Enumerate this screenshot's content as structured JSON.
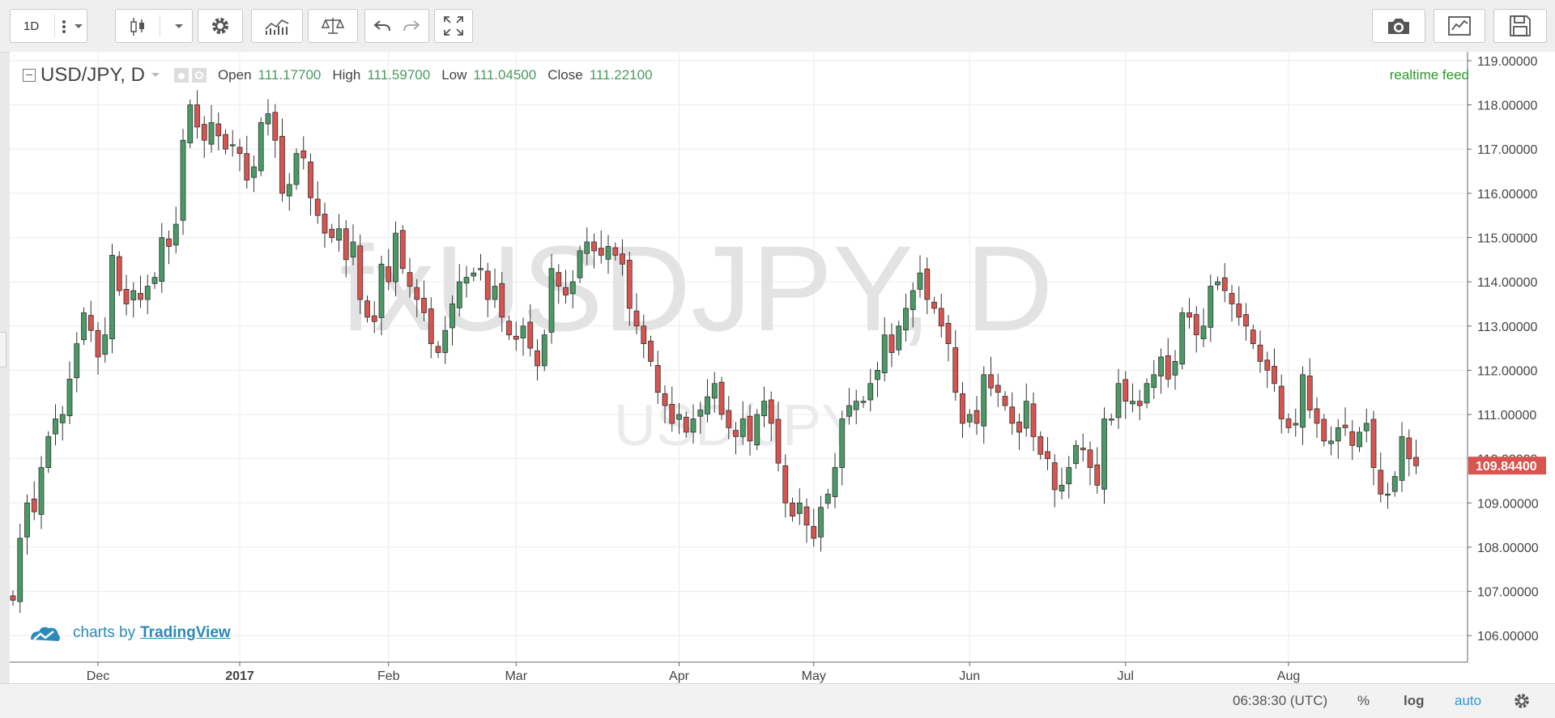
{
  "toolbar": {
    "interval": "1D"
  },
  "legend": {
    "symbol": "USD/JPY, D",
    "open_label": "Open",
    "open": "111.17700",
    "high_label": "High",
    "high": "111.59700",
    "low_label": "Low",
    "low": "111.04500",
    "close_label": "Close",
    "close": "111.22100"
  },
  "watermark": {
    "line1": "fxUSDJPY, D",
    "line2": "USD/JPY"
  },
  "feed_label": "realtime feed",
  "branding": {
    "prefix": "charts by",
    "name": "TradingView"
  },
  "bottom_bar": {
    "time": "06:38:30 (UTC)",
    "percent": "%",
    "log": "log",
    "auto": "auto"
  },
  "colors": {
    "up": "#4a9a66",
    "down": "#d9534f",
    "price_tag": "#d9534f",
    "accent": "#2a8ab8"
  },
  "chart_data": {
    "type": "candlestick",
    "ylim": [
      105.4,
      119.2
    ],
    "y_ticks": [
      106,
      107,
      108,
      109,
      110,
      111,
      112,
      113,
      114,
      115,
      116,
      117,
      118,
      119
    ],
    "y_tick_labels": [
      "106.00000",
      "107.00000",
      "108.00000",
      "109.00000",
      "110.00000",
      "111.00000",
      "112.00000",
      "113.00000",
      "114.00000",
      "115.00000",
      "116.00000",
      "117.00000",
      "118.00000",
      "119.00000"
    ],
    "x_labels": [
      {
        "label": "Dec",
        "index": 12
      },
      {
        "label": "2017",
        "index": 32
      },
      {
        "label": "Feb",
        "index": 53
      },
      {
        "label": "Mar",
        "index": 71
      },
      {
        "label": "Apr",
        "index": 94
      },
      {
        "label": "May",
        "index": 113
      },
      {
        "label": "Jun",
        "index": 135
      },
      {
        "label": "Jul",
        "index": 157
      },
      {
        "label": "Aug",
        "index": 180
      }
    ],
    "last_price": "109.84400",
    "last_price_value": 109.844,
    "closes": [
      106.8,
      108.2,
      109.0,
      108.8,
      109.8,
      110.5,
      110.9,
      111.0,
      111.8,
      112.6,
      113.3,
      112.9,
      112.3,
      112.8,
      114.6,
      113.8,
      113.5,
      113.8,
      113.6,
      113.9,
      114.1,
      115.0,
      114.8,
      115.3,
      117.2,
      118.0,
      117.5,
      117.2,
      117.6,
      117.3,
      117.0,
      117.1,
      116.9,
      116.3,
      116.6,
      117.6,
      117.8,
      117.2,
      116.0,
      116.2,
      116.9,
      116.8,
      115.9,
      115.5,
      115.1,
      115.0,
      115.2,
      114.5,
      114.9,
      113.6,
      113.2,
      113.1,
      114.4,
      114.0,
      115.1,
      114.3,
      113.9,
      113.6,
      113.3,
      112.6,
      112.4,
      112.9,
      113.5,
      114.0,
      114.1,
      114.2,
      114.3,
      113.6,
      113.9,
      113.2,
      112.8,
      112.7,
      113.0,
      112.5,
      112.1,
      112.8,
      114.3,
      113.9,
      113.7,
      114.0,
      114.7,
      114.9,
      114.7,
      114.6,
      114.8,
      114.6,
      114.4,
      113.4,
      113.0,
      112.6,
      112.2,
      111.5,
      111.2,
      110.8,
      111.0,
      110.6,
      110.9,
      111.1,
      111.4,
      111.7,
      111.0,
      110.7,
      110.5,
      110.9,
      110.4,
      111.0,
      111.3,
      110.8,
      109.9,
      109.0,
      108.7,
      109.0,
      108.5,
      108.2,
      108.9,
      109.2,
      109.8,
      110.9,
      111.2,
      111.3,
      111.3,
      111.7,
      112.0,
      112.8,
      112.4,
      113.0,
      113.4,
      113.8,
      114.2,
      113.6,
      113.4,
      113.0,
      112.6,
      111.5,
      110.8,
      111.0,
      110.8,
      111.9,
      111.6,
      111.5,
      111.2,
      110.8,
      110.6,
      111.3,
      110.5,
      110.1,
      110.0,
      109.3,
      109.4,
      109.8,
      110.3,
      110.2,
      109.8,
      109.4,
      110.9,
      110.9,
      111.7,
      111.3,
      111.3,
      111.2,
      111.7,
      111.9,
      112.3,
      111.8,
      112.2,
      113.3,
      113.2,
      112.8,
      113.0,
      113.9,
      114.0,
      113.8,
      113.5,
      113.2,
      113.0,
      112.6,
      112.2,
      112.0,
      111.7,
      110.9,
      110.7,
      110.8,
      111.9,
      111.1,
      110.8,
      110.4,
      110.4,
      110.7,
      110.7,
      110.3,
      110.6,
      110.8,
      109.8,
      109.2,
      109.2,
      109.6,
      110.5,
      110.0,
      109.84
    ]
  }
}
